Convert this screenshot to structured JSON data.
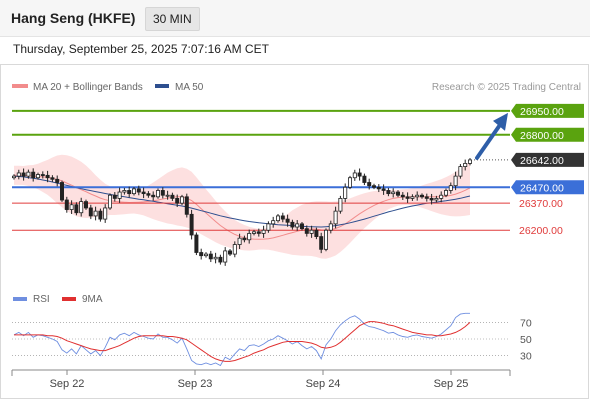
{
  "header": {
    "title": "Hang Seng (HKFE)",
    "timeframe": "30 MIN"
  },
  "timestamp": "Thursday, September 25, 2025 7:07:16 AM CET",
  "legend": {
    "ma20_label": "MA 20 + Bollinger Bands",
    "ma50_label": "MA 50",
    "ma20_color": "#f28c8c",
    "ma50_color": "#2e4f8f",
    "credit": "Research © 2025 Trading Central"
  },
  "chart_data": [
    {
      "type": "candlestick",
      "title": "",
      "x_ticks": [
        "Sep 22",
        "Sep 23",
        "Sep 24",
        "Sep 25"
      ],
      "y_range": [
        25950,
        27050
      ],
      "price_levels": [
        {
          "value": 26950,
          "label": "26950.00",
          "kind": "target",
          "color": "#5aa30f"
        },
        {
          "value": 26800,
          "label": "26800.00",
          "kind": "resistance",
          "color": "#5aa30f"
        },
        {
          "value": 26642,
          "label": "26642.00",
          "kind": "last",
          "color": "#333333"
        },
        {
          "value": 26470,
          "label": "26470.00",
          "kind": "pivot",
          "color": "#3b6fd8"
        },
        {
          "value": 26370,
          "label": "26370.00",
          "kind": "support",
          "color": "#e03b3b"
        },
        {
          "value": 26200,
          "label": "26200.00",
          "kind": "support",
          "color": "#e03b3b"
        }
      ],
      "close_series": [
        26540,
        26560,
        26540,
        26565,
        26530,
        26550,
        26545,
        26530,
        26520,
        26500,
        26390,
        26330,
        26360,
        26310,
        26380,
        26340,
        26290,
        26320,
        26270,
        26340,
        26420,
        26400,
        26440,
        26450,
        26430,
        26460,
        26440,
        26430,
        26420,
        26410,
        26450,
        26420,
        26420,
        26400,
        26370,
        26410,
        26300,
        26170,
        26060,
        26040,
        26050,
        26020,
        26030,
        26000,
        26070,
        26050,
        26110,
        26150,
        26140,
        26180,
        26190,
        26180,
        26200,
        26240,
        26260,
        26290,
        26270,
        26250,
        26220,
        26240,
        26210,
        26180,
        26200,
        26160,
        26080,
        26200,
        26240,
        26320,
        26400,
        26470,
        26530,
        26560,
        26540,
        26500,
        26480,
        26470,
        26460,
        26450,
        26430,
        26440,
        26420,
        26410,
        26400,
        26410,
        26420,
        26410,
        26400,
        26390,
        26400,
        26420,
        26450,
        26480,
        26540,
        26600,
        26620,
        26642
      ],
      "ma20_series": [
        26545,
        26545,
        26544,
        26543,
        26540,
        26538,
        26535,
        26532,
        26527,
        26520,
        26510,
        26496,
        26483,
        26468,
        26455,
        26442,
        26428,
        26415,
        26402,
        26392,
        26386,
        26381,
        26378,
        26376,
        26374,
        26375,
        26376,
        26378,
        26381,
        26385,
        26390,
        26396,
        26402,
        26407,
        26410,
        26410,
        26402,
        26387,
        26363,
        26335,
        26308,
        26282,
        26255,
        26230,
        26209,
        26190,
        26174,
        26162,
        26153,
        26147,
        26144,
        26143,
        26144,
        26147,
        26152,
        26160,
        26168,
        26177,
        26185,
        26193,
        26200,
        26205,
        26208,
        26207,
        26202,
        26201,
        26204,
        26211,
        26223,
        26240,
        26260,
        26282,
        26303,
        26322,
        26340,
        26356,
        26370,
        26382,
        26392,
        26400,
        26405,
        26408,
        26409,
        26410,
        26411,
        26411,
        26411,
        26410,
        26410,
        26411,
        26414,
        26419,
        26427,
        26438,
        26451,
        26466
      ],
      "bollinger_width_series": [
        60,
        60,
        60,
        65,
        70,
        80,
        95,
        110,
        130,
        150,
        165,
        175,
        180,
        180,
        175,
        165,
        150,
        130,
        115,
        100,
        90,
        85,
        80,
        75,
        70,
        70,
        75,
        85,
        100,
        115,
        130,
        145,
        160,
        170,
        180,
        185,
        185,
        180,
        170,
        160,
        150,
        140,
        130,
        120,
        110,
        100,
        90,
        85,
        80,
        75,
        70,
        65,
        65,
        70,
        80,
        95,
        110,
        125,
        140,
        150,
        160,
        165,
        170,
        175,
        180,
        180,
        175,
        170,
        160,
        150,
        140,
        130,
        120,
        110,
        100,
        90,
        80,
        70,
        60,
        55,
        50,
        50,
        50,
        55,
        60,
        70,
        80,
        90,
        100,
        110,
        120,
        130,
        140,
        150,
        160,
        170
      ],
      "ma50_series": [
        26540,
        26538,
        26535,
        26531,
        26527,
        26522,
        26516,
        26510,
        26503,
        26496,
        26489,
        26482,
        26475,
        26468,
        26461,
        26455,
        26449,
        26443,
        26437,
        26431,
        26425,
        26420,
        26415,
        26410,
        26405,
        26400,
        26395,
        26391,
        26386,
        26382,
        26377,
        26372,
        26367,
        26362,
        26357,
        26352,
        26346,
        26339,
        26331,
        26323,
        26315,
        26307,
        26299,
        26291,
        26284,
        26277,
        26271,
        26265,
        26260,
        26255,
        26251,
        26247,
        26244,
        26241,
        26238,
        26235,
        26233,
        26231,
        26229,
        26227,
        26225,
        26223,
        26222,
        26221,
        26220,
        26222,
        26225,
        26229,
        26234,
        26240,
        26247,
        26254,
        26262,
        26270,
        26279,
        26288,
        26297,
        26306,
        26315,
        26323,
        26331,
        26339,
        26346,
        26352,
        26358,
        26364,
        26369,
        26373,
        26377,
        26381,
        26385,
        26390,
        26395,
        26401,
        26408,
        26415
      ],
      "forecast_arrow": {
        "from": 26642,
        "to": 26900
      }
    },
    {
      "type": "line",
      "title": "",
      "legend": [
        {
          "name": "RSI",
          "color": "#6f8fe0"
        },
        {
          "name": "9MA",
          "color": "#e03030"
        }
      ],
      "y_ticks": [
        "70",
        "50",
        "30"
      ],
      "y_range": [
        15,
        85
      ],
      "rsi_series": [
        55,
        58,
        54,
        58,
        52,
        55,
        54,
        52,
        50,
        47,
        37,
        33,
        38,
        32,
        42,
        37,
        32,
        36,
        30,
        40,
        52,
        49,
        55,
        57,
        54,
        58,
        55,
        53,
        51,
        50,
        56,
        52,
        52,
        49,
        45,
        51,
        38,
        24,
        20,
        19,
        21,
        19,
        21,
        18,
        28,
        25,
        32,
        38,
        36,
        42,
        43,
        41,
        44,
        48,
        50,
        54,
        51,
        48,
        44,
        47,
        42,
        38,
        41,
        36,
        26,
        43,
        50,
        60,
        67,
        72,
        76,
        78,
        74,
        68,
        65,
        64,
        62,
        60,
        57,
        58,
        55,
        53,
        52,
        54,
        55,
        53,
        52,
        51,
        53,
        56,
        61,
        66,
        76,
        80,
        81,
        81
      ],
      "rsi9ma_series": [
        55,
        55,
        55,
        55,
        55,
        55,
        55,
        54,
        54,
        53,
        51,
        48,
        46,
        44,
        42,
        40,
        38,
        37,
        36,
        36,
        38,
        40,
        42,
        45,
        48,
        51,
        53,
        54,
        54,
        54,
        54,
        54,
        53,
        53,
        52,
        51,
        49,
        45,
        41,
        37,
        33,
        29,
        26,
        24,
        23,
        23,
        24,
        26,
        28,
        30,
        33,
        35,
        37,
        40,
        42,
        44,
        46,
        47,
        47,
        47,
        47,
        46,
        45,
        43,
        40,
        39,
        40,
        42,
        46,
        51,
        56,
        61,
        66,
        69,
        71,
        71,
        70,
        69,
        67,
        66,
        64,
        62,
        60,
        58,
        57,
        56,
        55,
        55,
        54,
        54,
        55,
        56,
        58,
        61,
        65,
        70
      ]
    }
  ]
}
